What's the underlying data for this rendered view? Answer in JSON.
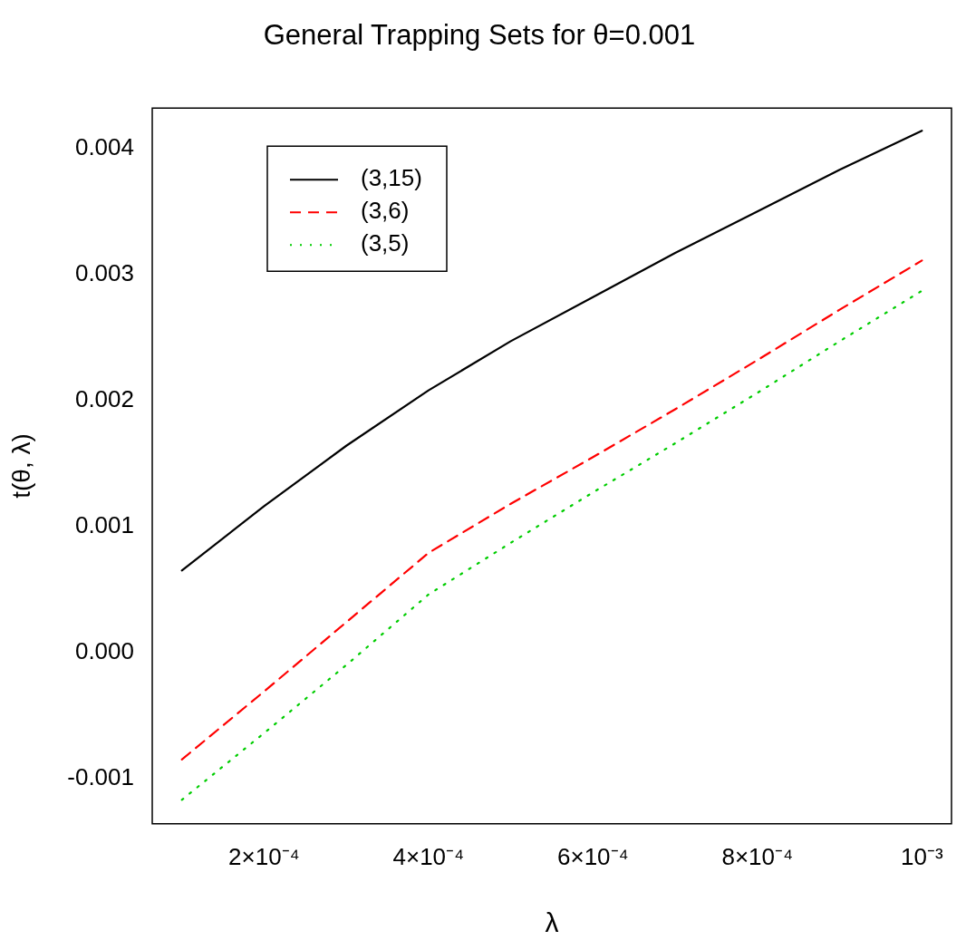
{
  "chart_data": {
    "type": "line",
    "title": "General Trapping Sets for θ=0.001",
    "xlabel": "λ",
    "ylabel": "t(θ, λ)",
    "x": [
      0.0001,
      0.0002,
      0.0003,
      0.0004,
      0.0005,
      0.0006,
      0.0007,
      0.0008,
      0.0009,
      0.001
    ],
    "series": [
      {
        "name": "(3,15)",
        "color": "#000000",
        "line_style": "solid",
        "values": [
          0.00065,
          0.00116,
          0.00164,
          0.00208,
          0.00247,
          0.00282,
          0.00317,
          0.0035,
          0.00383,
          0.00414
        ]
      },
      {
        "name": "(3,6)",
        "color": "#ff0000",
        "line_style": "dashed",
        "values": [
          -0.00085,
          -0.00031,
          0.00024,
          0.00079,
          0.00118,
          0.00155,
          0.00193,
          0.00232,
          0.00272,
          0.00311
        ]
      },
      {
        "name": "(3,5)",
        "color": "#00cd00",
        "line_style": "dotted",
        "values": [
          -0.00117,
          -0.00064,
          -0.0001,
          0.00046,
          0.00087,
          0.00127,
          0.00166,
          0.00206,
          0.00247,
          0.00287
        ]
      }
    ],
    "xlim": [
      6.4e-05,
      0.001036
    ],
    "ylim": [
      -0.00136,
      0.00432
    ],
    "xticks": [
      {
        "value": 0.0002,
        "label": "2×10⁻⁴"
      },
      {
        "value": 0.0004,
        "label": "4×10⁻⁴"
      },
      {
        "value": 0.0006,
        "label": "6×10⁻⁴"
      },
      {
        "value": 0.0008,
        "label": "8×10⁻⁴"
      },
      {
        "value": 0.001,
        "label": "10⁻³"
      }
    ],
    "yticks": [
      {
        "value": -0.001,
        "label": "-0.001"
      },
      {
        "value": 0,
        "label": "0.000"
      },
      {
        "value": 0.001,
        "label": "0.001"
      },
      {
        "value": 0.002,
        "label": "0.002"
      },
      {
        "value": 0.003,
        "label": "0.003"
      },
      {
        "value": 0.004,
        "label": "0.004"
      }
    ],
    "legend": "top left",
    "marker": "none",
    "grid": false
  }
}
